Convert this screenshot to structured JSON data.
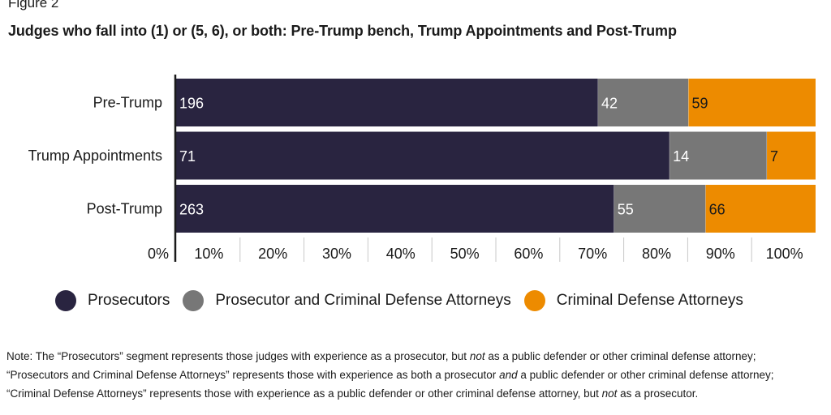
{
  "figure_label": "Figure 2",
  "title": "Judges who fall into (1) or (5, 6), or both: Pre-Trump bench, Trump Appointments and Post-Trump",
  "colors": {
    "Prosecutors": "#292440",
    "Prosecutor and Criminal Defense Attorneys": "#777777",
    "Criminal Defense Attorneys": "#ED8B00"
  },
  "chart_data": {
    "type": "bar",
    "orientation": "horizontal",
    "stacked": "100%",
    "categories": [
      "Pre-Trump",
      "Trump Appointments",
      "Post-Trump"
    ],
    "series": [
      {
        "name": "Prosecutors",
        "values": [
          196,
          71,
          263
        ]
      },
      {
        "name": "Prosecutor and Criminal Defense Attorneys",
        "values": [
          42,
          14,
          55
        ]
      },
      {
        "name": "Criminal Defense Attorneys",
        "values": [
          59,
          7,
          66
        ]
      }
    ],
    "x_ticks": [
      "0%",
      "10%",
      "20%",
      "30%",
      "40%",
      "50%",
      "60%",
      "70%",
      "80%",
      "90%",
      "100%"
    ],
    "xlim": [
      0,
      100
    ],
    "legend_position": "bottom"
  },
  "note": {
    "parts": [
      {
        "text": "Note: The “Prosecutors” segment represents those judges with experience as a prosecutor, but ",
        "italic": false
      },
      {
        "text": "not",
        "italic": true
      },
      {
        "text": " as a public defender or other criminal defense attorney; “Prosecutors and Criminal Defense Attorneys” represents those with experience as both a prosecutor ",
        "italic": false
      },
      {
        "text": "and",
        "italic": true
      },
      {
        "text": " a public defender or other criminal defense attorney; “Criminal Defense Attorneys” represents those with experience as a public defender or other criminal defense attorney, but ",
        "italic": false
      },
      {
        "text": "not",
        "italic": true
      },
      {
        "text": " as a prosecutor.",
        "italic": false
      }
    ]
  }
}
